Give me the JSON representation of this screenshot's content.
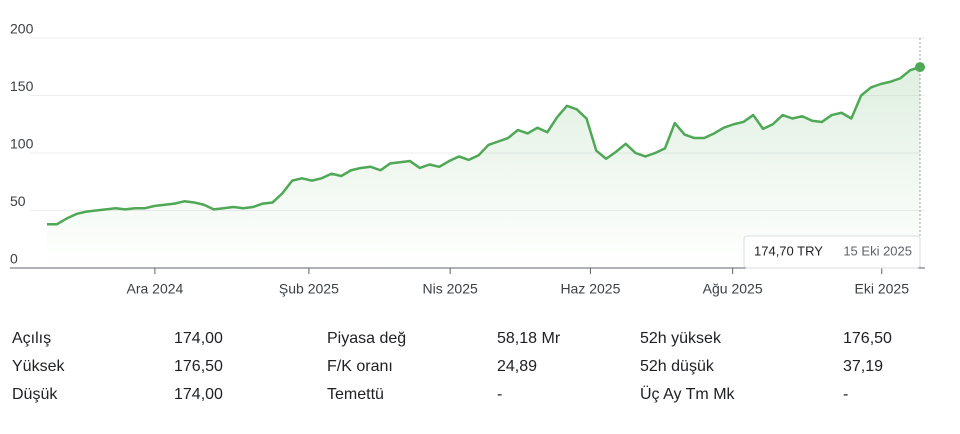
{
  "chart_data": {
    "type": "line",
    "series": [
      {
        "color": "#4fa855",
        "values": [
          38,
          38,
          43,
          47,
          49,
          50,
          51,
          52,
          51,
          52,
          52,
          54,
          55,
          56,
          58,
          57,
          55,
          51,
          52,
          53,
          52,
          53,
          56,
          57,
          65,
          76,
          78,
          76,
          78,
          82,
          80,
          85,
          87,
          88,
          85,
          91,
          92,
          93,
          87,
          90,
          88,
          93,
          97,
          94,
          98,
          107,
          110,
          113,
          120,
          117,
          122,
          118,
          131,
          141,
          138,
          130,
          102,
          95,
          101,
          108,
          100,
          97,
          100,
          104,
          126,
          116,
          113,
          113,
          117,
          122,
          125,
          127,
          133,
          121,
          125,
          133,
          130,
          132,
          128,
          127,
          133,
          135,
          130,
          150,
          157,
          160,
          162,
          165,
          172,
          174.7
        ],
        "value_labels": [
          null,
          null,
          null,
          null,
          null,
          null,
          null,
          null,
          null,
          null,
          null,
          null,
          null,
          null,
          null,
          null,
          null,
          null,
          null,
          null,
          null,
          null,
          null,
          null,
          null,
          null,
          null,
          null,
          null,
          null,
          null,
          null,
          null,
          null,
          null,
          null,
          null,
          null,
          null,
          null,
          null,
          null,
          null,
          null,
          null,
          null,
          null,
          null,
          null,
          null,
          null,
          null,
          null,
          null,
          null,
          null,
          null,
          null,
          null,
          null,
          null,
          null,
          null,
          null,
          null,
          null,
          null,
          null,
          null,
          null,
          null,
          null,
          null,
          null,
          null,
          null,
          null,
          null,
          null,
          null,
          null,
          null,
          null,
          null,
          null,
          null,
          null,
          null,
          null,
          "174,70 TRY"
        ]
      }
    ],
    "last_date": "15 Eki 2025",
    "xlim": [
      0,
      89
    ],
    "xticks": [
      {
        "value": 11,
        "label": "Ara 2024"
      },
      {
        "value": 26.7,
        "label": "Şub 2025"
      },
      {
        "value": 41.1,
        "label": "Nis 2025"
      },
      {
        "value": 55.4,
        "label": "Haz 2025"
      },
      {
        "value": 69.9,
        "label": "Ağu 2025"
      },
      {
        "value": 85.1,
        "label": "Eki 2025"
      }
    ],
    "ylim": [
      0,
      200
    ],
    "yticks": [
      0,
      50,
      100,
      150,
      200
    ],
    "grid": true
  },
  "stats": [
    [
      [
        "Açılış",
        "174,00"
      ],
      [
        "Piyasa değ",
        "58,18 Mr"
      ],
      [
        "52h yüksek",
        "176,50"
      ]
    ],
    [
      [
        "Yüksek",
        "176,50"
      ],
      [
        "F/K oranı",
        "24,89"
      ],
      [
        "52h düşük",
        "37,19"
      ]
    ],
    [
      [
        "Düşük",
        "174,00"
      ],
      [
        "Temettü",
        "-"
      ],
      [
        "Üç Ay Tm Mk",
        "-"
      ]
    ]
  ]
}
